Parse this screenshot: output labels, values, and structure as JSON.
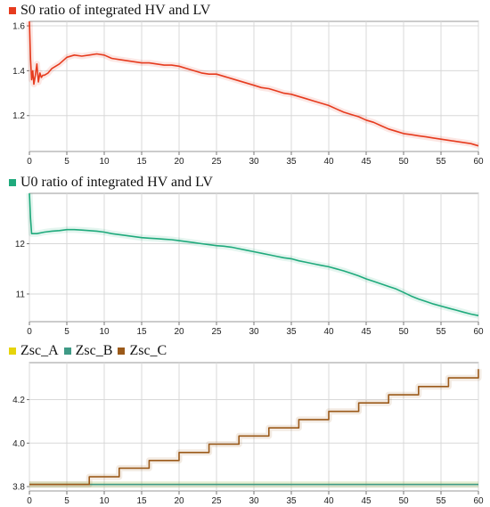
{
  "chart_data": [
    {
      "type": "line",
      "series": [
        {
          "name": "S0 ratio of integrated HV and LV",
          "color": "#e63b1e",
          "x": [
            0,
            0.15,
            0.3,
            0.45,
            0.6,
            0.8,
            1.0,
            1.2,
            1.4,
            1.6,
            1.8,
            2.0,
            2.5,
            3,
            4,
            5,
            6,
            7,
            8,
            9,
            10,
            11,
            12,
            13,
            14,
            15,
            16,
            17,
            18,
            19,
            20,
            21,
            22,
            23,
            24,
            25,
            26,
            27,
            28,
            29,
            30,
            31,
            32,
            33,
            34,
            35,
            36,
            37,
            38,
            39,
            40,
            41,
            42,
            43,
            44,
            45,
            46,
            47,
            48,
            49,
            50,
            51,
            52,
            53,
            54,
            55,
            56,
            57,
            58,
            59,
            60
          ],
          "y": [
            1.62,
            1.45,
            1.36,
            1.4,
            1.34,
            1.38,
            1.43,
            1.35,
            1.39,
            1.37,
            1.38,
            1.38,
            1.39,
            1.41,
            1.43,
            1.46,
            1.47,
            1.465,
            1.47,
            1.475,
            1.47,
            1.455,
            1.45,
            1.445,
            1.44,
            1.435,
            1.435,
            1.43,
            1.425,
            1.425,
            1.42,
            1.41,
            1.4,
            1.39,
            1.385,
            1.385,
            1.375,
            1.365,
            1.355,
            1.345,
            1.335,
            1.325,
            1.32,
            1.31,
            1.3,
            1.295,
            1.285,
            1.275,
            1.265,
            1.255,
            1.245,
            1.23,
            1.215,
            1.205,
            1.195,
            1.18,
            1.17,
            1.155,
            1.14,
            1.13,
            1.12,
            1.115,
            1.11,
            1.105,
            1.1,
            1.095,
            1.09,
            1.085,
            1.08,
            1.075,
            1.065
          ]
        }
      ],
      "xlim": [
        0,
        60
      ],
      "ylim": [
        1.04,
        1.62
      ],
      "x_ticks": [
        "0",
        "5",
        "10",
        "15",
        "20",
        "25",
        "30",
        "35",
        "40",
        "45",
        "50",
        "55",
        "60"
      ],
      "y_ticks": [
        "1.2",
        "1.4",
        "1.6"
      ],
      "y_tick_values": [
        1.2,
        1.4,
        1.6
      ],
      "grid": true,
      "legend_placement": "top-left"
    },
    {
      "type": "line",
      "series": [
        {
          "name": "U0 ratio of integrated HV and LV",
          "color": "#1faa7c",
          "x": [
            0,
            0.15,
            0.3,
            0.6,
            1,
            2,
            3,
            4,
            5,
            6,
            7,
            8,
            9,
            10,
            11,
            12,
            13,
            14,
            15,
            16,
            17,
            18,
            19,
            20,
            21,
            22,
            23,
            24,
            25,
            26,
            27,
            28,
            29,
            30,
            31,
            32,
            33,
            34,
            35,
            36,
            37,
            38,
            39,
            40,
            41,
            42,
            43,
            44,
            45,
            46,
            47,
            48,
            49,
            50,
            51,
            52,
            53,
            54,
            55,
            56,
            57,
            58,
            59,
            60
          ],
          "y": [
            13.0,
            12.5,
            12.2,
            12.2,
            12.2,
            12.23,
            12.25,
            12.26,
            12.28,
            12.28,
            12.27,
            12.26,
            12.25,
            12.23,
            12.2,
            12.18,
            12.16,
            12.14,
            12.12,
            12.11,
            12.1,
            12.09,
            12.08,
            12.06,
            12.04,
            12.02,
            12.0,
            11.98,
            11.96,
            11.95,
            11.93,
            11.9,
            11.87,
            11.84,
            11.81,
            11.78,
            11.75,
            11.72,
            11.7,
            11.66,
            11.63,
            11.6,
            11.57,
            11.54,
            11.5,
            11.46,
            11.41,
            11.36,
            11.3,
            11.25,
            11.2,
            11.15,
            11.1,
            11.03,
            10.96,
            10.9,
            10.85,
            10.8,
            10.76,
            10.72,
            10.68,
            10.64,
            10.6,
            10.57
          ]
        }
      ],
      "xlim": [
        0,
        60
      ],
      "ylim": [
        10.45,
        13.0
      ],
      "x_ticks": [
        "0",
        "5",
        "10",
        "15",
        "20",
        "25",
        "30",
        "35",
        "40",
        "45",
        "50",
        "55",
        "60"
      ],
      "y_ticks": [
        "11",
        "12"
      ],
      "y_tick_values": [
        11,
        12
      ],
      "grid": true,
      "legend_placement": "top-left"
    },
    {
      "type": "line",
      "series": [
        {
          "name": "Zsc_A",
          "color": "#e6d40a",
          "x": [
            0,
            8,
            60
          ],
          "y": [
            3.81,
            3.81,
            3.81
          ]
        },
        {
          "name": "Zsc_B",
          "color": "#3f9a86",
          "x": [
            0,
            60
          ],
          "y": [
            3.81,
            3.81
          ]
        },
        {
          "name": "Zsc_C",
          "color": "#9b5a1a",
          "x": [
            0,
            8,
            8,
            12,
            12,
            16,
            16,
            20,
            20,
            24,
            24,
            28,
            28,
            32,
            32,
            36,
            36,
            40,
            40,
            44,
            44,
            48,
            48,
            52,
            52,
            56,
            56,
            60,
            60
          ],
          "y": [
            3.81,
            3.81,
            3.845,
            3.845,
            3.885,
            3.885,
            3.92,
            3.92,
            3.957,
            3.957,
            3.995,
            3.995,
            4.033,
            4.033,
            4.07,
            4.07,
            4.108,
            4.108,
            4.146,
            4.146,
            4.185,
            4.185,
            4.222,
            4.222,
            4.26,
            4.26,
            4.3,
            4.3,
            4.34
          ]
        }
      ],
      "xlim": [
        0,
        60
      ],
      "ylim": [
        3.78,
        4.37
      ],
      "x_ticks": [
        "0",
        "5",
        "10",
        "15",
        "20",
        "25",
        "30",
        "35",
        "40",
        "45",
        "50",
        "55",
        "60"
      ],
      "y_ticks": [
        "3.8",
        "4.0",
        "4.2"
      ],
      "y_tick_values": [
        3.8,
        4.0,
        4.2
      ],
      "grid": true,
      "legend_placement": "top-left"
    }
  ]
}
